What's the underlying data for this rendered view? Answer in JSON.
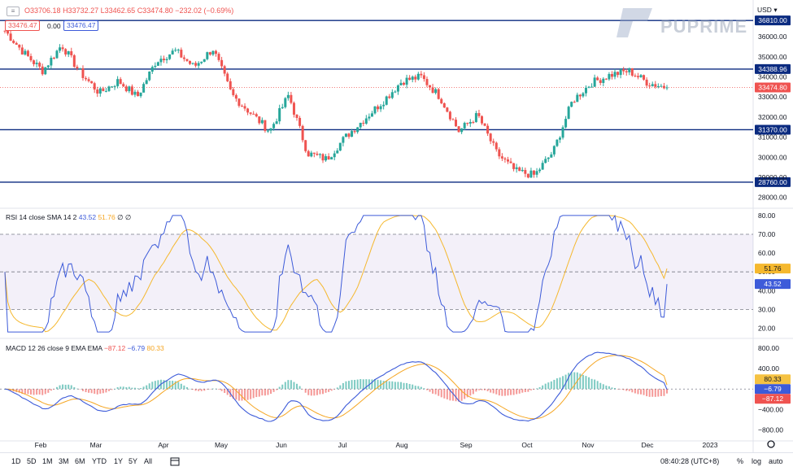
{
  "header": {
    "open": "O33706.18",
    "high": "H33732.27",
    "low": "L33462.65",
    "close": "C33474.80",
    "change": "−232.02 (−0.69%)",
    "currency": "USD",
    "badge_red": "33476.47",
    "badge_mid": "0.00",
    "badge_blue": "33476.47"
  },
  "brand": "PUPRIME",
  "price_axis": {
    "ticks": [
      "36000.00",
      "35000.00",
      "34000.00",
      "33000.00",
      "32000.00",
      "31000.00",
      "30000.00",
      "29000.00",
      "28000.00"
    ],
    "levels": [
      {
        "label": "36810.00",
        "value": 36810
      },
      {
        "label": "34388.96",
        "value": 34388.96
      },
      {
        "label": "31370.00",
        "value": 31370
      },
      {
        "label": "28760.00",
        "value": 28760
      }
    ],
    "current": {
      "label": "33474.80",
      "value": 33474.8
    }
  },
  "rsi": {
    "legend": "RSI 14 close SMA 14 2",
    "value": "43.52",
    "sma": "51.76",
    "extras": "∅ ∅",
    "ticks": [
      "80.00",
      "70.00",
      "60.00",
      "50.00",
      "40.00",
      "30.00",
      "20.00"
    ]
  },
  "macd": {
    "legend": "MACD 12 26 close 9 EMA EMA",
    "hist": "−87.12",
    "macd": "−6.79",
    "signal": "80.33",
    "ticks": [
      "800.00",
      "400.00",
      "0.00",
      "−400.00",
      "−800.00"
    ]
  },
  "x_axis": {
    "labels": [
      "Feb",
      "Mar",
      "Apr",
      "May",
      "Jun",
      "Jul",
      "Aug",
      "Sep",
      "Oct",
      "Nov",
      "Dec",
      "2023"
    ]
  },
  "bottom_bar": {
    "ranges": [
      "1D",
      "5D",
      "1M",
      "3M",
      "6M",
      "YTD",
      "1Y",
      "5Y",
      "All"
    ],
    "time": "08:40:28 (UTC+8)",
    "opts": [
      "%",
      "log",
      "auto"
    ]
  },
  "colors": {
    "up": "#26a69a",
    "down": "#ef5350",
    "level": "#0b2b80",
    "rsi": "#3d5bd9",
    "sma": "#f5b82e",
    "macd": "#3d5bd9",
    "signal": "#f5a623"
  },
  "chart_data": {
    "type": "candlestick",
    "title": "",
    "ylim": [
      27500,
      37100
    ],
    "x_labels": [
      "Feb",
      "Mar",
      "Apr",
      "May",
      "Jun",
      "Jul",
      "Aug",
      "Sep",
      "Oct",
      "Nov",
      "Dec",
      "2023"
    ],
    "close_path": [
      {
        "month": "Jan",
        "close": 36300
      },
      {
        "month": "Jan",
        "close": 35200
      },
      {
        "month": "Jan",
        "close": 34300
      },
      {
        "month": "Feb",
        "close": 35600
      },
      {
        "month": "Feb",
        "close": 34200
      },
      {
        "month": "Feb",
        "close": 33200
      },
      {
        "month": "Mar",
        "close": 33800
      },
      {
        "month": "Mar",
        "close": 33000
      },
      {
        "month": "Mar",
        "close": 34800
      },
      {
        "month": "Apr",
        "close": 35300
      },
      {
        "month": "Apr",
        "close": 34500
      },
      {
        "month": "Apr",
        "close": 35400
      },
      {
        "month": "May",
        "close": 33100
      },
      {
        "month": "May",
        "close": 32200
      },
      {
        "month": "May",
        "close": 31300
      },
      {
        "month": "Jun",
        "close": 33100
      },
      {
        "month": "Jun",
        "close": 30200
      },
      {
        "month": "Jun",
        "close": 29900
      },
      {
        "month": "Jul",
        "close": 31000
      },
      {
        "month": "Jul",
        "close": 31900
      },
      {
        "month": "Jul",
        "close": 32800
      },
      {
        "month": "Aug",
        "close": 33800
      },
      {
        "month": "Aug",
        "close": 34000
      },
      {
        "month": "Aug",
        "close": 33000
      },
      {
        "month": "Sep",
        "close": 31300
      },
      {
        "month": "Sep",
        "close": 32100
      },
      {
        "month": "Sep",
        "close": 30200
      },
      {
        "month": "Oct",
        "close": 29300
      },
      {
        "month": "Oct",
        "close": 29100
      },
      {
        "month": "Oct",
        "close": 30300
      },
      {
        "month": "Nov",
        "close": 32800
      },
      {
        "month": "Nov",
        "close": 33700
      },
      {
        "month": "Nov",
        "close": 34100
      },
      {
        "month": "Dec",
        "close": 34300
      },
      {
        "month": "Dec",
        "close": 33700
      },
      {
        "month": "Dec",
        "close": 33475
      }
    ],
    "rsi_ylim": [
      15,
      83
    ],
    "rsi_bands": [
      30,
      50,
      70
    ],
    "rsi_last": 43.52,
    "rsi_sma_last": 51.76,
    "macd_ylim": [
      -1000,
      960
    ],
    "macd_last": -6.79,
    "signal_last": 80.33,
    "hist_last": -87.12
  }
}
